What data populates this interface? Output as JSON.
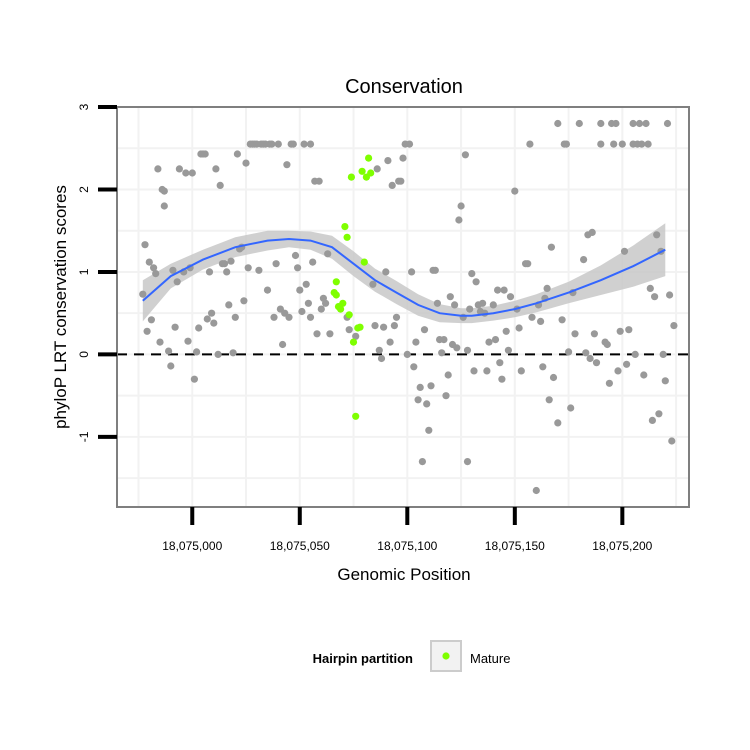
{
  "chart_data": {
    "type": "scatter",
    "title": "Conservation",
    "xlabel": "Genomic Position",
    "ylabel": "phyloP LRT conservation scores",
    "xlim": [
      18074965,
      18075231
    ],
    "ylim": [
      -1.85,
      3.0
    ],
    "x_ticks": [
      18075000,
      18075050,
      18075100,
      18075150,
      18075200
    ],
    "x_tick_labels": [
      "18,075,000",
      "18,075,050",
      "18,075,100",
      "18,075,150",
      "18,075,200"
    ],
    "y_ticks": [
      -1,
      0,
      1,
      2,
      3
    ],
    "y_tick_labels": [
      "-1",
      "0",
      "1",
      "2",
      "3"
    ],
    "reference_line_y": 0,
    "legend": {
      "title": "Hairpin partition",
      "entries": [
        {
          "label": "Mature",
          "color": "#7fff00"
        }
      ]
    },
    "colors": {
      "other": "#999999",
      "mature": "#7fff00",
      "smooth": "#3366ff",
      "band": "#c8c8c8",
      "panel_border": "#7f7f7f",
      "grid": "#f2f2f2"
    },
    "smooth_curve": {
      "x": [
        18074977,
        18074990,
        18075005,
        18075020,
        18075035,
        18075045,
        18075055,
        18075065,
        18075075,
        18075085,
        18075095,
        18075105,
        18075115,
        18075125,
        18075130,
        18075140,
        18075150,
        18075160,
        18075175,
        18075190,
        18075205,
        18075220
      ],
      "y": [
        0.65,
        0.95,
        1.15,
        1.3,
        1.38,
        1.4,
        1.38,
        1.3,
        1.1,
        0.9,
        0.75,
        0.6,
        0.5,
        0.47,
        0.47,
        0.5,
        0.55,
        0.62,
        0.75,
        0.9,
        1.07,
        1.27
      ],
      "lower": [
        0.4,
        0.8,
        1.03,
        1.18,
        1.26,
        1.3,
        1.27,
        1.16,
        0.95,
        0.76,
        0.61,
        0.47,
        0.39,
        0.38,
        0.38,
        0.41,
        0.45,
        0.51,
        0.62,
        0.72,
        0.82,
        0.95
      ],
      "upper": [
        0.9,
        1.1,
        1.27,
        1.42,
        1.5,
        1.5,
        1.49,
        1.44,
        1.25,
        1.04,
        0.89,
        0.73,
        0.61,
        0.56,
        0.56,
        0.59,
        0.65,
        0.73,
        0.88,
        1.08,
        1.32,
        1.59
      ]
    },
    "series": [
      {
        "name": "Other",
        "points": [
          [
            18074977,
            0.73
          ],
          [
            18074978,
            1.33
          ],
          [
            18074979,
            0.28
          ],
          [
            18074980,
            1.12
          ],
          [
            18074981,
            0.42
          ],
          [
            18074982,
            1.05
          ],
          [
            18074983,
            0.98
          ],
          [
            18074984,
            2.25
          ],
          [
            18074985,
            0.15
          ],
          [
            18074986,
            2.0
          ],
          [
            18074987,
            1.8
          ],
          [
            18074987,
            1.98
          ],
          [
            18074989,
            0.04
          ],
          [
            18074990,
            -0.14
          ],
          [
            18074991,
            1.02
          ],
          [
            18074992,
            0.33
          ],
          [
            18074993,
            0.88
          ],
          [
            18074994,
            2.25
          ],
          [
            18074996,
            1.0
          ],
          [
            18074997,
            2.2
          ],
          [
            18074998,
            0.16
          ],
          [
            18074999,
            1.05
          ],
          [
            18075000,
            2.2
          ],
          [
            18075001,
            -0.3
          ],
          [
            18075002,
            0.03
          ],
          [
            18075003,
            0.32
          ],
          [
            18075004,
            2.43
          ],
          [
            18075005,
            2.43
          ],
          [
            18075006,
            2.43
          ],
          [
            18075007,
            0.43
          ],
          [
            18075008,
            1.0
          ],
          [
            18075009,
            0.5
          ],
          [
            18075010,
            0.38
          ],
          [
            18075011,
            2.25
          ],
          [
            18075012,
            0.0
          ],
          [
            18075013,
            2.05
          ],
          [
            18075014,
            1.1
          ],
          [
            18075015,
            1.1
          ],
          [
            18075016,
            1.0
          ],
          [
            18075017,
            0.6
          ],
          [
            18075018,
            1.13
          ],
          [
            18075019,
            0.02
          ],
          [
            18075020,
            0.45
          ],
          [
            18075021,
            2.43
          ],
          [
            18075022,
            1.28
          ],
          [
            18075023,
            1.3
          ],
          [
            18075024,
            0.65
          ],
          [
            18075025,
            2.32
          ],
          [
            18075026,
            1.05
          ],
          [
            18075027,
            2.55
          ],
          [
            18075028,
            2.55
          ],
          [
            18075029,
            2.55
          ],
          [
            18075030,
            2.55
          ],
          [
            18075031,
            1.02
          ],
          [
            18075032,
            2.55
          ],
          [
            18075033,
            2.55
          ],
          [
            18075034,
            2.55
          ],
          [
            18075035,
            0.78
          ],
          [
            18075036,
            2.55
          ],
          [
            18075037,
            2.55
          ],
          [
            18075038,
            0.45
          ],
          [
            18075039,
            1.1
          ],
          [
            18075040,
            2.55
          ],
          [
            18075041,
            0.55
          ],
          [
            18075042,
            0.12
          ],
          [
            18075043,
            0.5
          ],
          [
            18075044,
            2.3
          ],
          [
            18075045,
            0.45
          ],
          [
            18075046,
            2.55
          ],
          [
            18075047,
            2.55
          ],
          [
            18075048,
            1.2
          ],
          [
            18075049,
            1.05
          ],
          [
            18075050,
            0.78
          ],
          [
            18075051,
            0.52
          ],
          [
            18075052,
            2.55
          ],
          [
            18075053,
            0.85
          ],
          [
            18075054,
            0.62
          ],
          [
            18075055,
            2.55
          ],
          [
            18075055,
            0.45
          ],
          [
            18075056,
            1.12
          ],
          [
            18075057,
            2.1
          ],
          [
            18075058,
            0.25
          ],
          [
            18075059,
            2.1
          ],
          [
            18075060,
            0.55
          ],
          [
            18075061,
            0.68
          ],
          [
            18075062,
            0.62
          ],
          [
            18075063,
            1.22
          ],
          [
            18075064,
            0.25
          ],
          [
            18075072,
            0.45
          ],
          [
            18075073,
            0.3
          ],
          [
            18075076,
            0.22
          ],
          [
            18075084,
            0.85
          ],
          [
            18075085,
            0.35
          ],
          [
            18075086,
            2.25
          ],
          [
            18075087,
            0.05
          ],
          [
            18075088,
            -0.05
          ],
          [
            18075089,
            0.33
          ],
          [
            18075090,
            1.0
          ],
          [
            18075091,
            2.35
          ],
          [
            18075092,
            0.15
          ],
          [
            18075093,
            2.05
          ],
          [
            18075094,
            0.35
          ],
          [
            18075095,
            0.45
          ],
          [
            18075096,
            2.1
          ],
          [
            18075097,
            2.1
          ],
          [
            18075098,
            2.38
          ],
          [
            18075099,
            2.55
          ],
          [
            18075100,
            0.0
          ],
          [
            18075101,
            2.55
          ],
          [
            18075102,
            1.0
          ],
          [
            18075103,
            -0.15
          ],
          [
            18075104,
            0.15
          ],
          [
            18075105,
            -0.55
          ],
          [
            18075106,
            -0.4
          ],
          [
            18075107,
            -1.3
          ],
          [
            18075108,
            0.3
          ],
          [
            18075109,
            -0.6
          ],
          [
            18075110,
            -0.92
          ],
          [
            18075111,
            -0.38
          ],
          [
            18075112,
            1.02
          ],
          [
            18075113,
            1.02
          ],
          [
            18075114,
            0.62
          ],
          [
            18075115,
            0.18
          ],
          [
            18075116,
            0.02
          ],
          [
            18075117,
            0.18
          ],
          [
            18075118,
            -0.5
          ],
          [
            18075119,
            -0.25
          ],
          [
            18075120,
            0.7
          ],
          [
            18075121,
            0.12
          ],
          [
            18075122,
            0.6
          ],
          [
            18075123,
            0.08
          ],
          [
            18075124,
            1.63
          ],
          [
            18075125,
            1.8
          ],
          [
            18075126,
            0.45
          ],
          [
            18075127,
            2.42
          ],
          [
            18075128,
            -1.3
          ],
          [
            18075128,
            0.05
          ],
          [
            18075129,
            0.55
          ],
          [
            18075130,
            0.98
          ],
          [
            18075131,
            -0.2
          ],
          [
            18075132,
            0.88
          ],
          [
            18075133,
            0.6
          ],
          [
            18075134,
            0.52
          ],
          [
            18075135,
            0.62
          ],
          [
            18075136,
            0.5
          ],
          [
            18075137,
            -0.2
          ],
          [
            18075138,
            0.15
          ],
          [
            18075140,
            0.6
          ],
          [
            18075141,
            0.18
          ],
          [
            18075142,
            0.78
          ],
          [
            18075143,
            -0.1
          ],
          [
            18075144,
            -0.3
          ],
          [
            18075145,
            0.78
          ],
          [
            18075146,
            0.28
          ],
          [
            18075147,
            0.05
          ],
          [
            18075148,
            0.7
          ],
          [
            18075150,
            1.98
          ],
          [
            18075151,
            0.55
          ],
          [
            18075152,
            0.32
          ],
          [
            18075153,
            -0.2
          ],
          [
            18075155,
            1.1
          ],
          [
            18075156,
            1.1
          ],
          [
            18075157,
            2.55
          ],
          [
            18075158,
            0.45
          ],
          [
            18075160,
            -1.65
          ],
          [
            18075161,
            0.6
          ],
          [
            18075162,
            0.4
          ],
          [
            18075163,
            -0.15
          ],
          [
            18075164,
            0.68
          ],
          [
            18075165,
            0.8
          ],
          [
            18075166,
            -0.55
          ],
          [
            18075167,
            1.3
          ],
          [
            18075168,
            -0.28
          ],
          [
            18075170,
            -0.83
          ],
          [
            18075170,
            2.8
          ],
          [
            18075172,
            0.42
          ],
          [
            18075173,
            2.55
          ],
          [
            18075174,
            2.55
          ],
          [
            18075175,
            0.03
          ],
          [
            18075176,
            -0.65
          ],
          [
            18075177,
            0.75
          ],
          [
            18075178,
            0.25
          ],
          [
            18075180,
            2.8
          ],
          [
            18075182,
            1.15
          ],
          [
            18075183,
            0.02
          ],
          [
            18075184,
            1.45
          ],
          [
            18075185,
            -0.05
          ],
          [
            18075186,
            1.48
          ],
          [
            18075187,
            0.25
          ],
          [
            18075188,
            -0.1
          ],
          [
            18075190,
            2.8
          ],
          [
            18075190,
            2.55
          ],
          [
            18075192,
            0.15
          ],
          [
            18075193,
            0.12
          ],
          [
            18075194,
            -0.35
          ],
          [
            18075195,
            2.8
          ],
          [
            18075196,
            2.55
          ],
          [
            18075197,
            2.8
          ],
          [
            18075198,
            -0.2
          ],
          [
            18075199,
            0.28
          ],
          [
            18075200,
            2.55
          ],
          [
            18075201,
            1.25
          ],
          [
            18075202,
            -0.12
          ],
          [
            18075203,
            0.3
          ],
          [
            18075205,
            2.8
          ],
          [
            18075205,
            2.55
          ],
          [
            18075206,
            0.0
          ],
          [
            18075207,
            2.55
          ],
          [
            18075208,
            2.8
          ],
          [
            18075209,
            2.55
          ],
          [
            18075210,
            -0.25
          ],
          [
            18075211,
            2.8
          ],
          [
            18075212,
            2.55
          ],
          [
            18075213,
            0.8
          ],
          [
            18075214,
            -0.8
          ],
          [
            18075215,
            0.7
          ],
          [
            18075216,
            1.45
          ],
          [
            18075217,
            -0.72
          ],
          [
            18075218,
            1.25
          ],
          [
            18075219,
            0.0
          ],
          [
            18075220,
            -0.32
          ],
          [
            18075221,
            2.8
          ],
          [
            18075222,
            0.72
          ],
          [
            18075223,
            -1.05
          ],
          [
            18075224,
            0.35
          ]
        ]
      },
      {
        "name": "Mature",
        "points": [
          [
            18075066,
            0.75
          ],
          [
            18075067,
            0.88
          ],
          [
            18075067,
            0.72
          ],
          [
            18075068,
            0.58
          ],
          [
            18075069,
            0.55
          ],
          [
            18075070,
            0.62
          ],
          [
            18075071,
            1.55
          ],
          [
            18075072,
            1.42
          ],
          [
            18075073,
            0.48
          ],
          [
            18075074,
            2.15
          ],
          [
            18075075,
            0.15
          ],
          [
            18075076,
            -0.75
          ],
          [
            18075077,
            0.32
          ],
          [
            18075078,
            0.33
          ],
          [
            18075079,
            2.22
          ],
          [
            18075080,
            1.12
          ],
          [
            18075081,
            2.15
          ],
          [
            18075082,
            2.38
          ],
          [
            18075083,
            2.2
          ]
        ]
      }
    ]
  }
}
